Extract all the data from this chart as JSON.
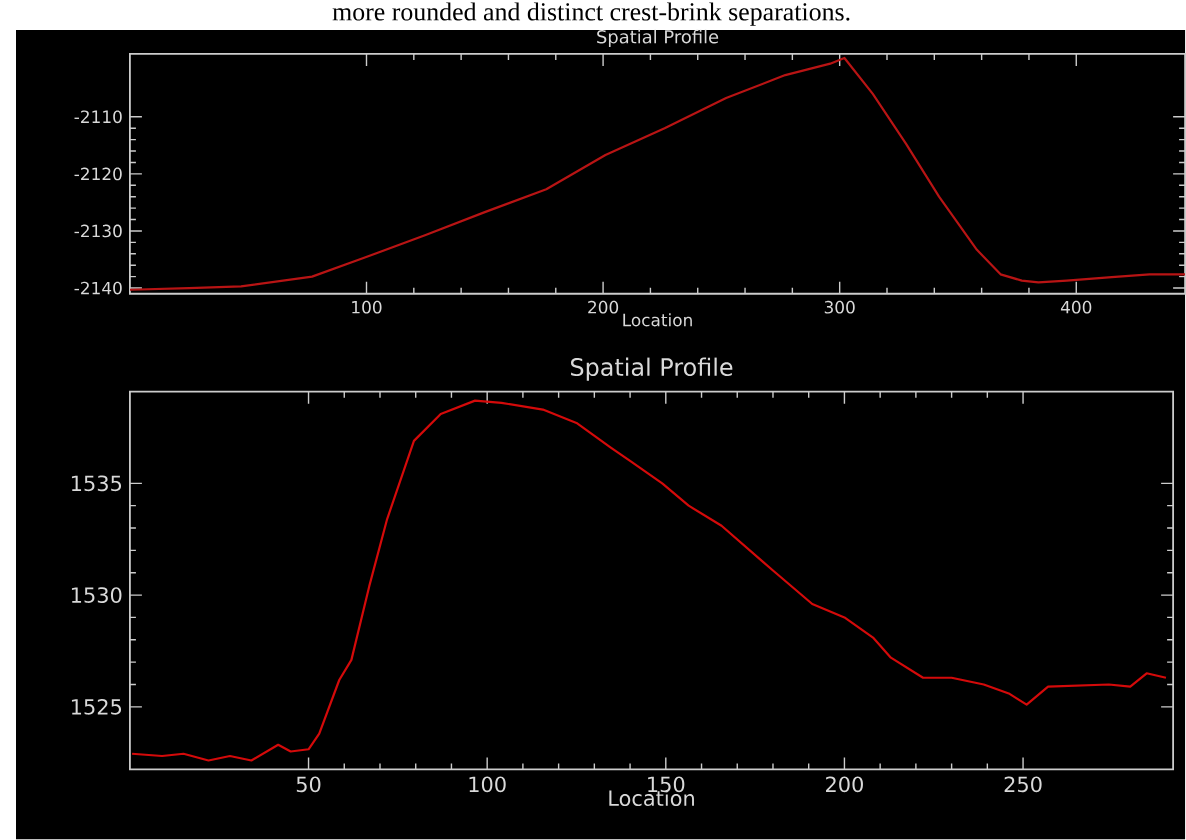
{
  "chart_data": [
    {
      "type": "line",
      "title": "Spatial Profile",
      "xlabel": "Location",
      "color": "#b81414",
      "xlim": [
        0,
        446
      ],
      "ylim": [
        -2141,
        -2099
      ],
      "xticks": [
        100,
        200,
        300,
        400
      ],
      "yticks": [
        -2140,
        -2130,
        -2120,
        -2110
      ],
      "annotations": [
        "more rounded and distinct crest-brink separations."
      ],
      "x": [
        0,
        25,
        47,
        77,
        99,
        125,
        150,
        176,
        201,
        226,
        252,
        277,
        296,
        302,
        314,
        328,
        342,
        358,
        368,
        377,
        384,
        396,
        415,
        431,
        446
      ],
      "values": [
        -2140.3,
        -2140,
        -2139.7,
        -2138,
        -2134.7,
        -2130.7,
        -2126.7,
        -2122.7,
        -2116.7,
        -2112,
        -2106.7,
        -2102.7,
        -2100.7,
        -2099.7,
        -2106,
        -2114.7,
        -2124,
        -2133.3,
        -2137.6,
        -2138.7,
        -2139,
        -2138.7,
        -2138.1,
        -2137.6,
        -2137.6
      ]
    },
    {
      "type": "line",
      "title": "Spatial Profile",
      "xlabel": "Location",
      "color": "#d40a0a",
      "xlim": [
        0,
        292
      ],
      "ylim": [
        1522.2,
        1539.1
      ],
      "xticks": [
        50,
        100,
        150,
        200,
        250
      ],
      "yticks": [
        1525,
        1530,
        1535
      ],
      "x": [
        0.6,
        9,
        15,
        22,
        28,
        34,
        41.5,
        45,
        50,
        53,
        58.6,
        62,
        67,
        72,
        79.5,
        87,
        96.6,
        104,
        115.6,
        125,
        134.6,
        140,
        149,
        156.4,
        165.6,
        180,
        191,
        200,
        208,
        213,
        222,
        230,
        239,
        246,
        251,
        257,
        274,
        280,
        284.6,
        290
      ],
      "values": [
        1522.9,
        1522.8,
        1522.9,
        1522.6,
        1522.8,
        1522.6,
        1523.3,
        1523,
        1523.1,
        1523.8,
        1526.2,
        1527.1,
        1530.4,
        1533.4,
        1536.9,
        1538.1,
        1538.7,
        1538.6,
        1538.3,
        1537.7,
        1536.6,
        1536,
        1535,
        1534,
        1533.1,
        1531.1,
        1529.6,
        1529,
        1528.1,
        1527.2,
        1526.3,
        1526.3,
        1526,
        1525.6,
        1525.1,
        1525.9,
        1526,
        1525.9,
        1526.5,
        1526.3
      ]
    }
  ]
}
